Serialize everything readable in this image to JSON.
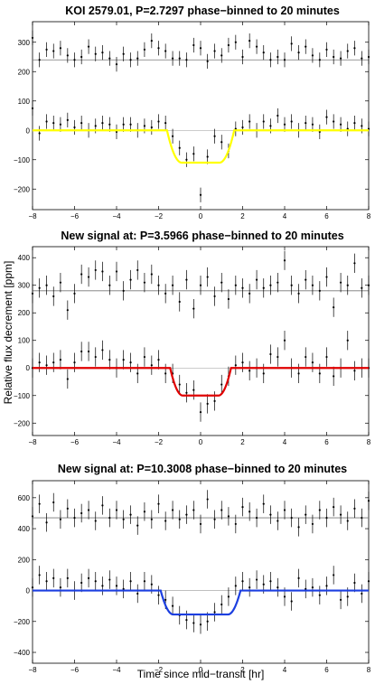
{
  "figure": {
    "ylabel": "Relative flux decrement [ppm]",
    "xlabel": "Time since mid−transit [hr]"
  },
  "chart_data": [
    {
      "type": "scatter",
      "title": "KOI 2579.01, P=2.7297 phase−binned to 20 minutes",
      "xlim": [
        -8,
        8
      ],
      "ylim": [
        -270,
        370
      ],
      "xticks": [
        "−8",
        "−6",
        "−4",
        "−2",
        "0",
        "2",
        "4",
        "6",
        "8"
      ],
      "yticks": [
        -200,
        -100,
        0,
        100,
        200,
        300
      ],
      "ytick_labels": [
        "−200",
        "−100",
        "0",
        "100",
        "200",
        "300"
      ],
      "offset_level": 240,
      "model_color": "#ffff00",
      "model": {
        "depth": 110,
        "half_duration": 1.6,
        "ingress": 0.7
      },
      "errorbar": 25,
      "series": [
        {
          "x": [
            -8.0,
            -7.67,
            -7.33,
            -7.0,
            -6.67,
            -6.33,
            -6.0,
            -5.67,
            -5.33,
            -5.0,
            -4.67,
            -4.33,
            -4.0,
            -3.67,
            -3.33,
            -3.0,
            -2.67,
            -2.33,
            -2.0,
            -1.67,
            -1.33,
            -1.0,
            -0.67,
            -0.33,
            0.0,
            0.33,
            0.67,
            1.0,
            1.33,
            1.67,
            2.0,
            2.33,
            2.67,
            3.0,
            3.33,
            3.67,
            4.0,
            4.33,
            4.67,
            5.0,
            5.33,
            5.67,
            6.0,
            6.33,
            6.67,
            7.0,
            7.33,
            7.67,
            8.0
          ],
          "y": [
            315,
            240,
            275,
            270,
            280,
            255,
            240,
            250,
            285,
            260,
            265,
            245,
            225,
            260,
            240,
            245,
            275,
            305,
            280,
            270,
            245,
            245,
            240,
            290,
            280,
            235,
            270,
            255,
            290,
            300,
            250,
            305,
            285,
            265,
            240,
            250,
            240,
            295,
            265,
            285,
            255,
            240,
            275,
            250,
            245,
            270,
            280,
            245,
            250
          ]
        },
        {
          "x": [
            -8.0,
            -7.67,
            -7.33,
            -7.0,
            -6.67,
            -6.33,
            -6.0,
            -5.67,
            -5.33,
            -5.0,
            -4.67,
            -4.33,
            -4.0,
            -3.67,
            -3.33,
            -3.0,
            -2.67,
            -2.33,
            -2.0,
            -1.67,
            -1.33,
            -1.0,
            -0.67,
            -0.33,
            0.0,
            0.33,
            0.67,
            1.0,
            1.33,
            1.67,
            2.0,
            2.33,
            2.67,
            3.0,
            3.33,
            3.67,
            4.0,
            4.33,
            4.67,
            5.0,
            5.33,
            5.67,
            6.0,
            6.33,
            6.67,
            7.0,
            7.33,
            7.67,
            8.0
          ],
          "y": [
            75,
            -10,
            30,
            25,
            20,
            35,
            10,
            25,
            0,
            15,
            25,
            20,
            -5,
            20,
            20,
            0,
            15,
            10,
            30,
            25,
            -20,
            -60,
            -100,
            -80,
            -220,
            -90,
            -20,
            -40,
            -70,
            5,
            10,
            30,
            0,
            30,
            15,
            50,
            20,
            30,
            0,
            25,
            20,
            -5,
            45,
            30,
            20,
            5,
            25,
            15,
            5
          ]
        }
      ]
    },
    {
      "type": "scatter",
      "title": "New signal at: P=3.5966 phase−binned to 20 minutes",
      "xlim": [
        -8,
        8
      ],
      "ylim": [
        -245,
        440
      ],
      "xticks": [
        "−8",
        "−6",
        "−4",
        "−2",
        "0",
        "2",
        "4",
        "6",
        "8"
      ],
      "yticks": [
        -200,
        -100,
        0,
        100,
        200,
        300,
        400
      ],
      "ytick_labels": [
        "−200",
        "−100",
        "0",
        "100",
        "200",
        "300",
        "400"
      ],
      "offset_level": 280,
      "model_color": "#e00000",
      "model": {
        "depth": 100,
        "half_duration": 1.45,
        "ingress": 0.6
      },
      "errorbar": 35,
      "series": [
        {
          "x": [
            -8.0,
            -7.67,
            -7.33,
            -7.0,
            -6.67,
            -6.33,
            -6.0,
            -5.67,
            -5.33,
            -5.0,
            -4.67,
            -4.33,
            -4.0,
            -3.67,
            -3.33,
            -3.0,
            -2.67,
            -2.33,
            -2.0,
            -1.67,
            -1.33,
            -1.0,
            -0.67,
            -0.33,
            0.0,
            0.33,
            0.67,
            1.0,
            1.33,
            1.67,
            2.0,
            2.33,
            2.67,
            3.0,
            3.33,
            3.67,
            4.0,
            4.33,
            4.67,
            5.0,
            5.33,
            5.67,
            6.0,
            6.33,
            6.67,
            7.0,
            7.33,
            7.67,
            8.0
          ],
          "y": [
            270,
            290,
            300,
            260,
            310,
            210,
            270,
            340,
            330,
            355,
            350,
            300,
            350,
            280,
            320,
            355,
            310,
            340,
            300,
            270,
            300,
            240,
            320,
            215,
            300,
            330,
            260,
            310,
            250,
            300,
            290,
            270,
            320,
            290,
            300,
            310,
            390,
            300,
            270,
            320,
            300,
            280,
            330,
            220,
            310,
            300,
            380,
            290,
            300
          ]
        },
        {
          "x": [
            -8.0,
            -7.67,
            -7.33,
            -7.0,
            -6.67,
            -6.33,
            -6.0,
            -5.67,
            -5.33,
            -5.0,
            -4.67,
            -4.33,
            -4.0,
            -3.67,
            -3.33,
            -3.0,
            -2.67,
            -2.33,
            -2.0,
            -1.67,
            -1.33,
            -1.0,
            -0.67,
            -0.33,
            0.0,
            0.33,
            0.67,
            1.0,
            1.33,
            1.67,
            2.0,
            2.33,
            2.67,
            3.0,
            3.33,
            3.67,
            4.0,
            4.33,
            4.67,
            5.0,
            5.33,
            5.67,
            6.0,
            6.33,
            6.67,
            7.0,
            7.33,
            7.67,
            8.0
          ],
          "y": [
            0,
            20,
            10,
            20,
            30,
            -40,
            20,
            60,
            60,
            40,
            65,
            30,
            0,
            30,
            20,
            -20,
            40,
            10,
            30,
            -20,
            -20,
            -60,
            -90,
            -80,
            -160,
            -130,
            -120,
            -60,
            -30,
            10,
            20,
            -10,
            0,
            -20,
            50,
            40,
            100,
            0,
            -20,
            40,
            20,
            -20,
            40,
            -30,
            0,
            100,
            -10,
            0,
            0
          ]
        }
      ]
    },
    {
      "type": "scatter",
      "title": "New signal at: P=10.3008 phase−binned to 20 minutes",
      "xlim": [
        -8,
        8
      ],
      "ylim": [
        -470,
        710
      ],
      "xticks": [
        "−8",
        "−6",
        "−4",
        "−2",
        "0",
        "2",
        "4",
        "6",
        "8"
      ],
      "yticks": [
        -400,
        -200,
        0,
        200,
        400,
        600
      ],
      "ytick_labels": [
        "−400",
        "−200",
        "0",
        "200",
        "400",
        "600"
      ],
      "offset_level": 470,
      "model_color": "#1c3fe0",
      "model": {
        "depth": 155,
        "half_duration": 1.9,
        "ingress": 0.6
      },
      "errorbar": 60,
      "series": [
        {
          "x": [
            -8.0,
            -7.67,
            -7.33,
            -7.0,
            -6.67,
            -6.33,
            -6.0,
            -5.67,
            -5.33,
            -5.0,
            -4.67,
            -4.33,
            -4.0,
            -3.67,
            -3.33,
            -3.0,
            -2.67,
            -2.33,
            -2.0,
            -1.67,
            -1.33,
            -1.0,
            -0.67,
            -0.33,
            0.0,
            0.33,
            0.67,
            1.0,
            1.33,
            1.67,
            2.0,
            2.33,
            2.67,
            3.0,
            3.33,
            3.67,
            4.0,
            4.33,
            4.67,
            5.0,
            5.33,
            5.67,
            6.0,
            6.33,
            6.67,
            7.0,
            7.33,
            7.67,
            8.0
          ],
          "y": [
            480,
            560,
            440,
            570,
            460,
            530,
            470,
            500,
            520,
            450,
            550,
            470,
            520,
            460,
            490,
            420,
            510,
            460,
            560,
            450,
            520,
            460,
            490,
            520,
            430,
            590,
            460,
            520,
            480,
            430,
            540,
            510,
            470,
            560,
            490,
            450,
            520,
            470,
            410,
            490,
            430,
            520,
            470,
            540,
            490,
            450,
            530,
            470,
            580
          ]
        },
        {
          "x": [
            -8.0,
            -7.67,
            -7.33,
            -7.0,
            -6.67,
            -6.33,
            -6.0,
            -5.67,
            -5.33,
            -5.0,
            -4.67,
            -4.33,
            -4.0,
            -3.67,
            -3.33,
            -3.0,
            -2.67,
            -2.33,
            -2.0,
            -1.67,
            -1.33,
            -1.0,
            -0.67,
            -0.33,
            0.0,
            0.33,
            0.67,
            1.0,
            1.33,
            1.67,
            2.0,
            2.33,
            2.67,
            3.0,
            3.33,
            3.67,
            4.0,
            4.33,
            4.67,
            5.0,
            5.33,
            5.67,
            6.0,
            6.33,
            6.67,
            7.0,
            7.33,
            7.67,
            8.0
          ],
          "y": [
            20,
            100,
            60,
            80,
            20,
            80,
            0,
            50,
            80,
            60,
            30,
            70,
            30,
            10,
            60,
            -20,
            60,
            40,
            -30,
            -60,
            -100,
            -160,
            -190,
            -210,
            -220,
            -200,
            -140,
            -90,
            -40,
            30,
            60,
            20,
            70,
            40,
            60,
            20,
            -40,
            -70,
            80,
            10,
            20,
            -30,
            30,
            100,
            -60,
            -40,
            50,
            -20,
            60
          ]
        }
      ]
    }
  ]
}
